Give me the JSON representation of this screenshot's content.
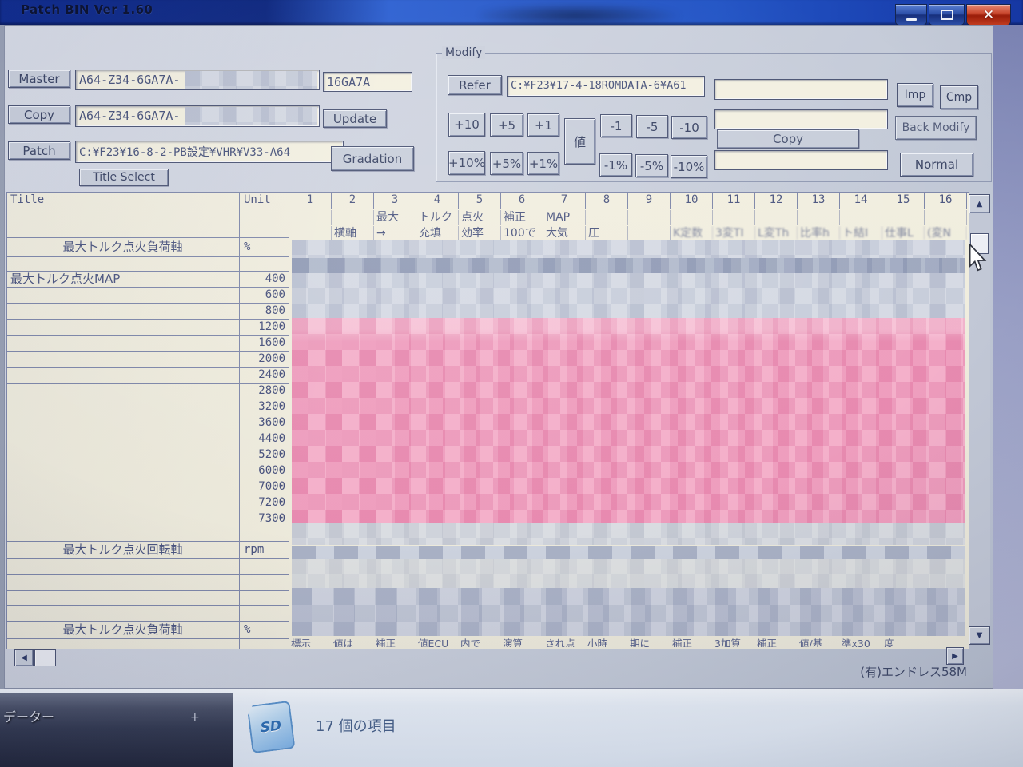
{
  "titlebar": {
    "app_title": "Patch BIN Ver 1.60",
    "close_glyph": "✕"
  },
  "file_section": {
    "master_button": "Master",
    "master_path": "A64-Z34-6GA7A-",
    "master_rom": "16GA7A",
    "copy_button": "Copy",
    "copy_path": "A64-Z34-6GA7A-",
    "update_button": "Update",
    "patch_button": "Patch",
    "patch_path": "C:¥F23¥16-8-2-PB設定¥VHR¥V33-A64",
    "title_select_button": "Title Select"
  },
  "modify": {
    "group_label": "Modify",
    "refer_button": "Refer",
    "refer_path": "C:¥F23¥17-4-18ROMDATA-6¥A61",
    "field_top": "",
    "field_mid": "",
    "field_bottom": "",
    "imp_button": "Imp",
    "cmp_button": "Cmp",
    "add_buttons": [
      "+10",
      "+5",
      "+1"
    ],
    "sub_buttons": [
      "-1",
      "-5",
      "-10"
    ],
    "add_pct_buttons": [
      "+10%",
      "+5%",
      "+1%"
    ],
    "sub_pct_buttons": [
      "-1%",
      "-5%",
      "-10%"
    ],
    "value_button": "値",
    "copy_button": "Copy",
    "back_modify_button": "Back Modify",
    "normal_button": "Normal"
  },
  "table": {
    "title_header": "Title",
    "unit_header": "Unit",
    "column_numbers": [
      "1",
      "2",
      "3",
      "4",
      "5",
      "6",
      "7",
      "8",
      "9",
      "10",
      "11",
      "12",
      "13",
      "14",
      "15",
      "16"
    ],
    "header_line2_cells": [
      "",
      "",
      "最大",
      "トルク",
      "点火",
      "補正",
      "MAP",
      "",
      "",
      "",
      "",
      "",
      "",
      "",
      "",
      ""
    ],
    "header_line3_cells": [
      "",
      "横軸",
      "→",
      "充填",
      "効率",
      "100で",
      "大気",
      "圧",
      "",
      "K定数",
      "3変TI",
      "L変Th",
      "比率h",
      "ト結I",
      "仕事L",
      "(変N"
    ],
    "load_axis_title": "最大トルク点火負荷軸",
    "load_axis_unit": "%",
    "map_title": "最大トルク点火MAP",
    "axis_values": [
      "400",
      "600",
      "800",
      "1200",
      "1600",
      "2000",
      "2400",
      "2800",
      "3200",
      "3600",
      "4400",
      "5200",
      "6000",
      "7000",
      "7200",
      "7300"
    ],
    "rpm_axis_title": "最大トルク点火回転軸",
    "rpm_axis_unit": "rpm",
    "load_axis2_title": "最大トルク点火負荷軸",
    "load_axis2_unit": "%",
    "bottom_fragments": [
      "標示",
      "値は",
      "補正",
      "値ECU",
      "内で",
      "演算",
      "され点",
      "小時",
      "期に",
      "補正",
      "3加算",
      "補正",
      "値/基",
      "準x30",
      "度"
    ]
  },
  "scrollbar": {
    "up": "▲",
    "down": "▼",
    "left": "◀",
    "right": "▶"
  },
  "footer": {
    "credit": "(有)エンドレス58M"
  },
  "desktop": {
    "wallpaper_label": "データー",
    "wallpaper_plus": "+",
    "item_count": "17 個の項目",
    "sd_icon_label": "SD"
  },
  "colors": {
    "pink_blur": "#ee93b7",
    "grey_blur": "#c7cdd9",
    "titlebar_blue": "#16339e",
    "close_red": "#bf3520"
  }
}
